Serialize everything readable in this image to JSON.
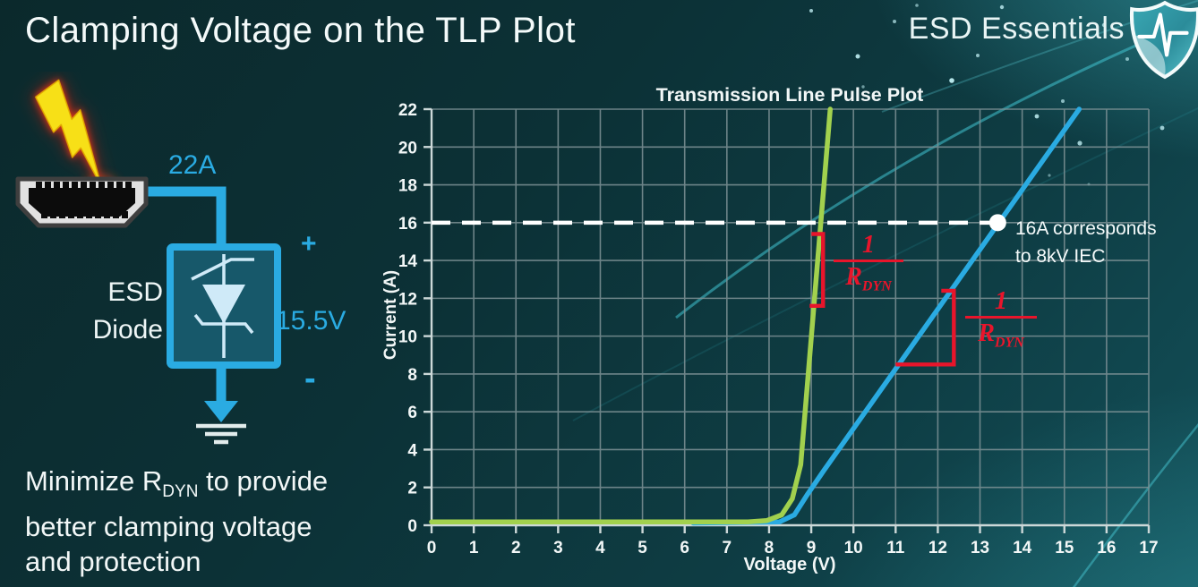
{
  "slide": {
    "title": "Clamping Voltage on the TLP Plot",
    "brand": "ESD Essentials"
  },
  "colors": {
    "background_teal": "#0c3136",
    "accent_cyan": "#2aabe2",
    "curve_green": "#a2d14e",
    "curve_blue": "#2aabe2",
    "annotation_red": "#e8152b",
    "grid_gray": "#7e9296",
    "text_white": "#f2f7f7",
    "lightning_yellow": "#f7e017"
  },
  "diagram": {
    "surge_current": "22A",
    "component_line1": "ESD",
    "component_line2": "Diode",
    "plus": "+",
    "clamping_voltage": "15.5V",
    "minus": "-",
    "icons": {
      "lightning": "esd-strike-lightning-icon",
      "connector": "hdmi-connector-icon",
      "diode": "tvs-diode-symbol-icon",
      "ground": "ground-symbol-icon",
      "shield": "esd-shield-pulse-icon"
    }
  },
  "note": {
    "line1_pre": "Minimize R",
    "line1_sub": "DYN",
    "line1_post": " to provide",
    "line2": "better clamping voltage",
    "line3": "and protection"
  },
  "chart_data": {
    "type": "line",
    "title": "Transmission Line Pulse Plot",
    "xlabel": "Voltage (V)",
    "ylabel": "Current (A)",
    "xlim": [
      0,
      17
    ],
    "ylim": [
      0,
      22
    ],
    "x_ticks": [
      0,
      1,
      2,
      3,
      4,
      5,
      6,
      7,
      8,
      9,
      10,
      11,
      12,
      13,
      14,
      15,
      16,
      17
    ],
    "y_ticks": [
      0,
      2,
      4,
      6,
      8,
      10,
      12,
      14,
      16,
      18,
      20,
      22
    ],
    "grid": {
      "vertical_step_V": 1,
      "horizontal_step_A": 2,
      "color": "#7e9296",
      "on": true
    },
    "legend": "none",
    "series": [
      {
        "name": "green-curve-low-Rdyn-diode",
        "color": "#a2d14e",
        "points": [
          [
            0,
            0.18
          ],
          [
            7.5,
            0.18
          ],
          [
            7.95,
            0.25
          ],
          [
            8.3,
            0.55
          ],
          [
            8.55,
            1.4
          ],
          [
            8.75,
            3.2
          ],
          [
            9.45,
            22
          ]
        ]
      },
      {
        "name": "blue-curve-higher-Rdyn-diode",
        "color": "#2aabe2",
        "points": [
          [
            6.2,
            0.12
          ],
          [
            8.25,
            0.18
          ],
          [
            8.6,
            0.55
          ],
          [
            8.9,
            1.6
          ],
          [
            9.3,
            2.9
          ],
          [
            15.35,
            22
          ]
        ]
      }
    ],
    "reference_line": {
      "y": 16,
      "color": "#ffffff",
      "style": "dashed",
      "x_start": 0,
      "x_end": 13.35
    },
    "marker": {
      "x": 13.42,
      "y": 16,
      "color": "#ffffff",
      "label_line1": "16A corresponds",
      "label_line2": "to 8kV IEC"
    },
    "slope_annotations": [
      {
        "curve": "green",
        "shape": "bracket",
        "color": "#e8152b",
        "x": 9.28,
        "y_top": 15.4,
        "y_bottom": 11.6,
        "tick_len": 13
      },
      {
        "curve": "blue",
        "shape": "right-angle",
        "color": "#e8152b",
        "x": 12.38,
        "y_top": 12.4,
        "y_bottom": 8.5,
        "base_x": 11.0,
        "tick_len": 14
      }
    ],
    "fraction_label": {
      "numerator": "1",
      "denominator_base": "R",
      "denominator_sub": "DYN"
    }
  }
}
